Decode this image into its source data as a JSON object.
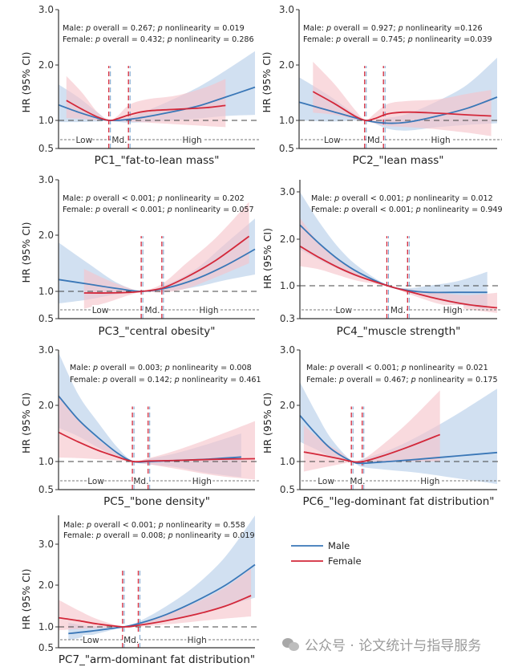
{
  "colors": {
    "male": "#3a77b7",
    "female": "#d3283a",
    "male_band": "#c9dbee",
    "female_band": "#f6c4c9",
    "axis": "#333333",
    "ref": "#444444",
    "region_line": "#777777"
  },
  "legend": {
    "items": [
      {
        "label": "Male",
        "series": "male"
      },
      {
        "label": "Female",
        "series": "female"
      }
    ]
  },
  "watermark": "公众号 · 论文统计与指导服务",
  "chart_data": [
    {
      "type": "line",
      "title": "",
      "xlabel": "PC1_\"fat-to-lean mass\"",
      "ylabel": "HR (95% CI)",
      "yticks": [
        "3.0",
        "2.0",
        "1.0",
        "0.5"
      ],
      "ytick_values": [
        3.0,
        2.0,
        1.0,
        0.5
      ],
      "x_range": [
        0,
        100
      ],
      "cutoffs": [
        26,
        36
      ],
      "regions": [
        "Low",
        "Md.",
        "High"
      ],
      "annotation": {
        "male": "Male: p overall = 0.267; p nonlinearity = 0.019",
        "female": "Female: p overall = 0.432; p nonlinearity = 0.286"
      },
      "series": [
        {
          "name": "Male",
          "x": [
            0,
            10,
            20,
            26,
            36,
            50,
            70,
            85,
            100
          ],
          "y": [
            1.28,
            1.15,
            1.04,
            1.0,
            1.02,
            1.1,
            1.25,
            1.42,
            1.6
          ],
          "lower": [
            0.97,
            0.97,
            0.98,
            0.99,
            0.96,
            0.98,
            1.03,
            1.08,
            1.1
          ],
          "upper": [
            1.65,
            1.42,
            1.14,
            1.01,
            1.06,
            1.25,
            1.58,
            1.9,
            2.25
          ]
        },
        {
          "name": "Female",
          "x": [
            4,
            12,
            20,
            26,
            30,
            36,
            45,
            60,
            75,
            85
          ],
          "y": [
            1.36,
            1.2,
            1.06,
            1.0,
            1.03,
            1.1,
            1.17,
            1.2,
            1.23,
            1.27
          ],
          "lower": [
            1.04,
            1.03,
            1.0,
            0.99,
            0.98,
            0.98,
            0.96,
            0.93,
            0.9,
            0.88
          ],
          "upper": [
            1.8,
            1.5,
            1.14,
            1.01,
            1.08,
            1.28,
            1.38,
            1.45,
            1.6,
            1.75
          ]
        }
      ]
    },
    {
      "type": "line",
      "xlabel": "PC2_\"lean mass\"",
      "ylabel": "HR (95% CI)",
      "yticks": [
        "3.0",
        "2.0",
        "1.0",
        "0.5"
      ],
      "ytick_values": [
        3.0,
        2.0,
        1.0,
        0.5
      ],
      "x_range": [
        0,
        100
      ],
      "cutoffs": [
        33.5,
        43
      ],
      "regions": [
        "Low",
        "Md.",
        "High"
      ],
      "annotation": {
        "male": "Male: p overall = 0.927; p nonlinearity =0.126",
        "female": "Female: p overall = 0.745; p nonlinearity =0.039"
      },
      "series": [
        {
          "name": "Male",
          "x": [
            0,
            15,
            33.5,
            45,
            55,
            70,
            85,
            100
          ],
          "y": [
            1.33,
            1.18,
            1.0,
            0.95,
            0.97,
            1.08,
            1.22,
            1.42
          ],
          "lower": [
            1.0,
            0.98,
            0.99,
            0.85,
            0.82,
            0.88,
            0.92,
            0.95
          ],
          "upper": [
            1.78,
            1.45,
            1.01,
            1.05,
            1.12,
            1.35,
            1.65,
            2.13
          ]
        },
        {
          "name": "Female",
          "x": [
            7,
            18,
            28,
            33.5,
            38,
            45,
            55,
            70,
            85,
            97
          ],
          "y": [
            1.52,
            1.3,
            1.08,
            1.0,
            1.03,
            1.12,
            1.15,
            1.13,
            1.1,
            1.08
          ],
          "lower": [
            1.14,
            1.1,
            1.02,
            0.99,
            0.95,
            0.9,
            0.88,
            0.84,
            0.78,
            0.72
          ],
          "upper": [
            2.06,
            1.65,
            1.2,
            1.01,
            1.12,
            1.3,
            1.35,
            1.38,
            1.48,
            1.55
          ]
        }
      ]
    },
    {
      "type": "line",
      "xlabel": "PC3_\"central obesity\"",
      "ylabel": "HR (95% CI)",
      "yticks": [
        "3.0",
        "2.0",
        "1.0",
        "0.5"
      ],
      "ytick_values": [
        3.0,
        2.0,
        1.0,
        0.5
      ],
      "x_range": [
        0,
        100
      ],
      "cutoffs": [
        42.5,
        53
      ],
      "regions": [
        "Low",
        "Md.",
        "High"
      ],
      "annotation": {
        "male": "Male: p overall < 0.001; p nonlinearity = 0.202",
        "female": "Female: p overall < 0.001; p nonlinearity = 0.057"
      },
      "series": [
        {
          "name": "Male",
          "x": [
            0,
            15,
            30,
            42.5,
            55,
            70,
            85,
            100
          ],
          "y": [
            1.21,
            1.13,
            1.05,
            1.0,
            1.06,
            1.22,
            1.46,
            1.75
          ],
          "lower": [
            0.78,
            0.85,
            0.95,
            0.99,
            1.0,
            1.08,
            1.2,
            1.3
          ],
          "upper": [
            1.87,
            1.5,
            1.15,
            1.01,
            1.12,
            1.4,
            1.85,
            2.3
          ]
        },
        {
          "name": "Female",
          "x": [
            13,
            25,
            35,
            42.5,
            53,
            65,
            80,
            97
          ],
          "y": [
            0.97,
            0.97,
            0.98,
            1.0,
            1.06,
            1.25,
            1.55,
            1.98
          ],
          "lower": [
            0.68,
            0.8,
            0.92,
            0.99,
            0.98,
            1.05,
            1.25,
            1.5
          ],
          "upper": [
            1.4,
            1.2,
            1.07,
            1.01,
            1.14,
            1.5,
            1.95,
            2.6
          ]
        }
      ]
    },
    {
      "type": "line",
      "xlabel": "PC4_\"muscle strength\"",
      "ylabel": "HR (95% CI)",
      "yticks": [
        "3.0",
        "2.0",
        "1.0",
        "0.3"
      ],
      "ytick_values": [
        3.0,
        2.0,
        1.0,
        0.3
      ],
      "x_range": [
        0,
        100
      ],
      "cutoffs": [
        44.5,
        55
      ],
      "regions": [
        "Low",
        "Md.",
        "High"
      ],
      "annotation": {
        "male": "Male: p overall < 0.001; p nonlinearity = 0.012",
        "female": "Female: p overall < 0.001; p nonlinearity = 0.949"
      },
      "series": [
        {
          "name": "Male",
          "x": [
            0,
            10,
            20,
            30,
            44.5,
            55,
            65,
            80,
            95
          ],
          "y": [
            2.3,
            1.9,
            1.55,
            1.28,
            1.0,
            0.9,
            0.86,
            0.86,
            0.86
          ],
          "lower": [
            1.78,
            1.55,
            1.35,
            1.18,
            0.99,
            0.86,
            0.75,
            0.6,
            0.5
          ],
          "upper": [
            3.0,
            2.35,
            1.8,
            1.4,
            1.01,
            0.95,
            1.0,
            1.1,
            1.3
          ]
        },
        {
          "name": "Female",
          "x": [
            0,
            10,
            20,
            30,
            44.5,
            55,
            70,
            85,
            100
          ],
          "y": [
            1.85,
            1.6,
            1.38,
            1.2,
            1.0,
            0.88,
            0.72,
            0.6,
            0.53
          ],
          "lower": [
            1.42,
            1.35,
            1.22,
            1.1,
            0.99,
            0.83,
            0.62,
            0.5,
            0.42
          ],
          "upper": [
            2.45,
            1.9,
            1.55,
            1.3,
            1.01,
            0.93,
            0.85,
            0.8,
            0.85
          ]
        }
      ]
    },
    {
      "type": "line",
      "xlabel": "PC5_\"bone density\"",
      "ylabel": "HR (95% CI)",
      "yticks": [
        "3.0",
        "2.0",
        "1.0",
        "0.5"
      ],
      "ytick_values": [
        3.0,
        2.0,
        1.0,
        0.5
      ],
      "x_range": [
        0,
        100
      ],
      "cutoffs": [
        38,
        46
      ],
      "regions": [
        "Low",
        "Md.",
        "High"
      ],
      "annotation": {
        "male": "Male: p overall = 0.003; p nonlinearity = 0.008",
        "female": "Female: p overall = 0.142; p nonlinearity = 0.461"
      },
      "series": [
        {
          "name": "Male",
          "x": [
            0,
            10,
            20,
            30,
            38,
            46,
            60,
            75,
            93
          ],
          "y": [
            2.17,
            1.75,
            1.43,
            1.15,
            1.0,
            1.0,
            1.02,
            1.04,
            1.08
          ],
          "lower": [
            1.6,
            1.45,
            1.25,
            1.08,
            0.99,
            0.95,
            0.9,
            0.8,
            0.72
          ],
          "upper": [
            2.95,
            2.2,
            1.7,
            1.25,
            1.01,
            1.05,
            1.15,
            1.3,
            1.5
          ]
        },
        {
          "name": "Female",
          "x": [
            0,
            10,
            20,
            30,
            38,
            46,
            60,
            80,
            100
          ],
          "y": [
            1.52,
            1.35,
            1.2,
            1.08,
            1.0,
            1.01,
            1.02,
            1.04,
            1.05
          ],
          "lower": [
            1.07,
            1.06,
            1.04,
            1.02,
            0.99,
            0.95,
            0.87,
            0.75,
            0.68
          ],
          "upper": [
            2.2,
            1.75,
            1.4,
            1.15,
            1.01,
            1.06,
            1.2,
            1.45,
            1.72
          ]
        }
      ]
    },
    {
      "type": "line",
      "xlabel": "PC6_\"leg-dominant fat distribution\"",
      "ylabel": "HR (95% CI)",
      "yticks": [
        "3.0",
        "2.0",
        "1.0",
        "0.5"
      ],
      "ytick_values": [
        3.0,
        2.0,
        1.0,
        0.5
      ],
      "x_range": [
        0,
        100
      ],
      "cutoffs": [
        26.5,
        32
      ],
      "regions": [
        "Low",
        "Md.",
        "High"
      ],
      "annotation": {
        "male": "Male: p overall < 0.001; p nonlinearity = 0.021",
        "female": "Female: p overall = 0.467; p nonlinearity = 0.175"
      },
      "series": [
        {
          "name": "Male",
          "x": [
            0,
            8,
            16,
            26.5,
            32,
            45,
            60,
            80,
            100
          ],
          "y": [
            1.82,
            1.5,
            1.22,
            1.0,
            0.97,
            1.0,
            1.04,
            1.1,
            1.16
          ],
          "lower": [
            1.35,
            1.22,
            1.08,
            0.99,
            0.9,
            0.85,
            0.8,
            0.7,
            0.6
          ],
          "upper": [
            2.42,
            1.88,
            1.4,
            1.01,
            1.05,
            1.2,
            1.45,
            1.85,
            2.3
          ]
        },
        {
          "name": "Female",
          "x": [
            2,
            10,
            20,
            26.5,
            32,
            42,
            55,
            71
          ],
          "y": [
            1.17,
            1.12,
            1.05,
            1.0,
            1.0,
            1.1,
            1.26,
            1.48
          ],
          "lower": [
            0.82,
            0.88,
            0.95,
            0.99,
            0.96,
            0.98,
            1.0,
            1.0
          ],
          "upper": [
            1.65,
            1.4,
            1.18,
            1.01,
            1.04,
            1.3,
            1.7,
            2.27
          ]
        }
      ]
    },
    {
      "type": "line",
      "xlabel": "PC7_\"arm-dominant fat distribution\"",
      "ylabel": "HR (95% CI)",
      "yticks": [
        "3.0",
        "2.0",
        "1.0",
        "0.5"
      ],
      "ytick_values": [
        3.0,
        2.0,
        1.0,
        0.5
      ],
      "y_top": 3.7,
      "x_range": [
        0,
        100
      ],
      "cutoffs": [
        33,
        41
      ],
      "regions": [
        "Low",
        "Md.",
        "High"
      ],
      "annotation": {
        "male": "Male: p overall < 0.001; p nonlinearity = 0.558",
        "female": "Female: p overall = 0.008; p nonlinearity = 0.019"
      },
      "series": [
        {
          "name": "Male",
          "x": [
            5,
            15,
            25,
            33,
            41,
            55,
            70,
            85,
            100
          ],
          "y": [
            0.84,
            0.89,
            0.95,
            1.0,
            1.08,
            1.3,
            1.62,
            2.0,
            2.5
          ],
          "lower": [
            0.68,
            0.78,
            0.9,
            0.99,
            1.03,
            1.15,
            1.3,
            1.5,
            1.7
          ],
          "upper": [
            1.1,
            1.02,
            1.01,
            1.01,
            1.13,
            1.5,
            2.0,
            2.7,
            3.7
          ]
        },
        {
          "name": "Female",
          "x": [
            0,
            10,
            20,
            33,
            41,
            55,
            70,
            85,
            98
          ],
          "y": [
            1.22,
            1.15,
            1.07,
            1.0,
            1.04,
            1.15,
            1.3,
            1.5,
            1.75
          ],
          "lower": [
            0.92,
            0.95,
            0.97,
            0.99,
            1.0,
            1.06,
            1.13,
            1.2,
            1.25
          ],
          "upper": [
            1.65,
            1.4,
            1.18,
            1.01,
            1.08,
            1.3,
            1.58,
            1.95,
            2.4
          ]
        }
      ]
    }
  ]
}
